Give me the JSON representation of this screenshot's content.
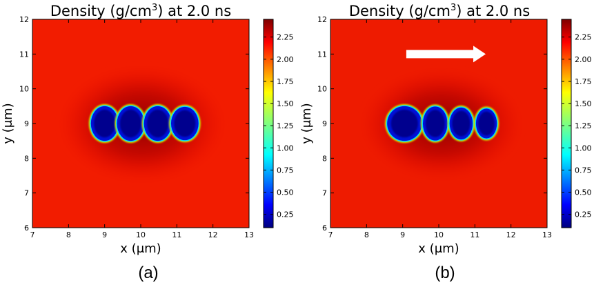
{
  "chart_data": [
    {
      "type": "heatmap",
      "panel_label": "(a)",
      "title": "Density (g/cm³) at 2.0 ns",
      "title_main": "Density (g/cm",
      "title_sup": "3",
      "title_tail": ") at 2.0 ns",
      "xlabel": "x (μm)",
      "ylabel": "y (μm)",
      "xlim": [
        7,
        13
      ],
      "ylim": [
        6,
        12
      ],
      "xticks": [
        "7",
        "8",
        "9",
        "10",
        "11",
        "12",
        "13"
      ],
      "yticks": [
        "6",
        "7",
        "8",
        "9",
        "10",
        "11",
        "12"
      ],
      "background_density": 2.3,
      "void_density": 0.1,
      "voids": [
        {
          "cx": 9.0,
          "cy": 9.0,
          "rx": 0.38,
          "ry": 0.5
        },
        {
          "cx": 9.72,
          "cy": 9.0,
          "rx": 0.38,
          "ry": 0.5
        },
        {
          "cx": 10.47,
          "cy": 9.0,
          "rx": 0.38,
          "ry": 0.5
        },
        {
          "cx": 11.22,
          "cy": 9.0,
          "rx": 0.38,
          "ry": 0.48
        }
      ],
      "arrow": false,
      "colorbar": {
        "min": 0.1,
        "max": 2.45,
        "ticks": [
          "0.25",
          "0.50",
          "0.75",
          "1.00",
          "1.25",
          "1.50",
          "1.75",
          "2.00",
          "2.25"
        ]
      }
    },
    {
      "type": "heatmap",
      "panel_label": "(b)",
      "title": "Density (g/cm³) at 2.0 ns",
      "title_main": "Density (g/cm",
      "title_sup": "3",
      "title_tail": ") at 2.0 ns",
      "xlabel": "x (μm)",
      "ylabel": "y (μm)",
      "xlim": [
        7,
        13
      ],
      "ylim": [
        6,
        12
      ],
      "xticks": [
        "7",
        "8",
        "9",
        "10",
        "11",
        "12",
        "13"
      ],
      "yticks": [
        "6",
        "7",
        "8",
        "9",
        "10",
        "11",
        "12"
      ],
      "background_density": 2.3,
      "void_density": 0.1,
      "voids": [
        {
          "cx": 9.05,
          "cy": 9.0,
          "rx": 0.48,
          "ry": 0.5
        },
        {
          "cx": 9.9,
          "cy": 9.0,
          "rx": 0.34,
          "ry": 0.49
        },
        {
          "cx": 10.62,
          "cy": 9.0,
          "rx": 0.32,
          "ry": 0.46
        },
        {
          "cx": 11.32,
          "cy": 9.0,
          "rx": 0.29,
          "ry": 0.43
        }
      ],
      "arrow": true,
      "arrow_from": [
        9.1,
        11.0
      ],
      "arrow_to": [
        11.3,
        11.0
      ],
      "colorbar": {
        "min": 0.1,
        "max": 2.45,
        "ticks": [
          "0.25",
          "0.50",
          "0.75",
          "1.00",
          "1.25",
          "1.50",
          "1.75",
          "2.00",
          "2.25"
        ]
      }
    }
  ]
}
